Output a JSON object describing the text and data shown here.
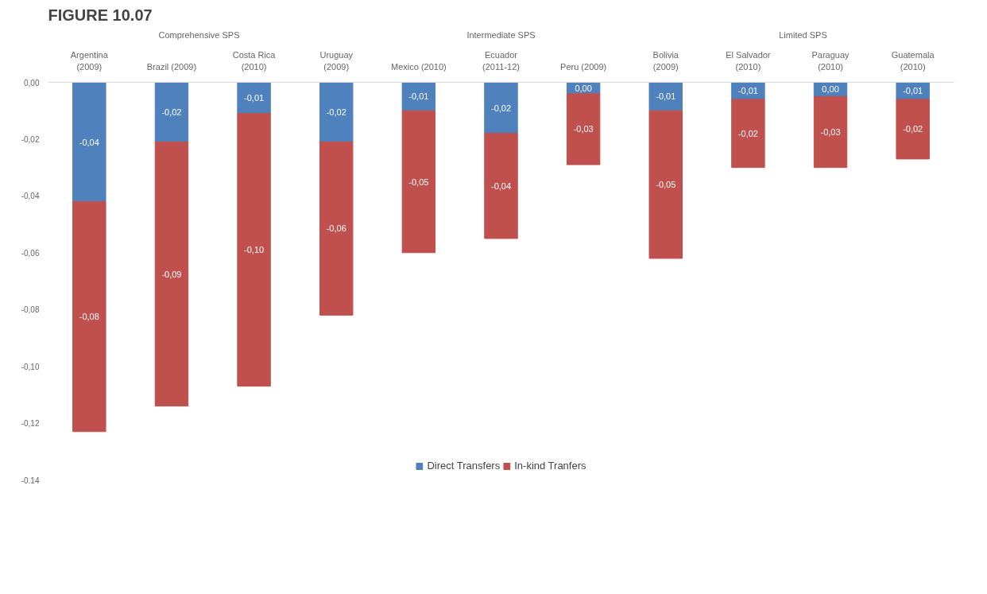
{
  "chart_data": {
    "type": "bar",
    "title": "FIGURE 10.07",
    "stacked": true,
    "categories": [
      "Argentina (2009)",
      "Brazil (2009)",
      "Costa Rica (2010)",
      "Uruguay (2009)",
      "Mexico (2010)",
      "Ecuador (2011-12)",
      "Peru (2009)",
      "Bolivia (2009)",
      "El Salvador (2010)",
      "Paraguay (2010)",
      "Guatemala (2010)"
    ],
    "series": [
      {
        "name": "Direct Transfers",
        "color": "#4f81bd",
        "values": [
          -0.042,
          -0.021,
          -0.011,
          -0.021,
          -0.01,
          -0.018,
          -0.004,
          -0.01,
          -0.006,
          -0.005,
          -0.006
        ],
        "value_labels": [
          "-0,04",
          "-0,02",
          "-0,01",
          "-0,02",
          "-0,01",
          "-0,02",
          "0,00",
          "-0,01",
          "-0,01",
          "0,00",
          "-0,01"
        ]
      },
      {
        "name": "In-kind Tranfers",
        "color": "#c0504d",
        "values": [
          -0.081,
          -0.093,
          -0.096,
          -0.061,
          -0.05,
          -0.037,
          -0.025,
          -0.052,
          -0.024,
          -0.025,
          -0.021
        ],
        "value_labels": [
          "-0,08",
          "-0,09",
          "-0,10",
          "-0,06",
          "-0,05",
          "-0,04",
          "-0,03",
          "-0,05",
          "-0,02",
          "-0,03",
          "-0,02"
        ]
      }
    ],
    "ylim": [
      -0.14,
      0
    ],
    "yticks": [
      {
        "value": 0,
        "label": "0,00"
      },
      {
        "value": -0.02,
        "label": "-0,02"
      },
      {
        "value": -0.04,
        "label": "-0,04"
      },
      {
        "value": -0.06,
        "label": "-0,06"
      },
      {
        "value": -0.08,
        "label": "-0,08"
      },
      {
        "value": -0.1,
        "label": "-0,10"
      },
      {
        "value": -0.12,
        "label": "-0,12"
      },
      {
        "value": -0.14,
        "label": "-0,14"
      }
    ],
    "annotations": [
      "Comprehensive SPS",
      "Intermediate SPS",
      "Limited SPS"
    ],
    "legend": "bottom",
    "grid": false
  }
}
